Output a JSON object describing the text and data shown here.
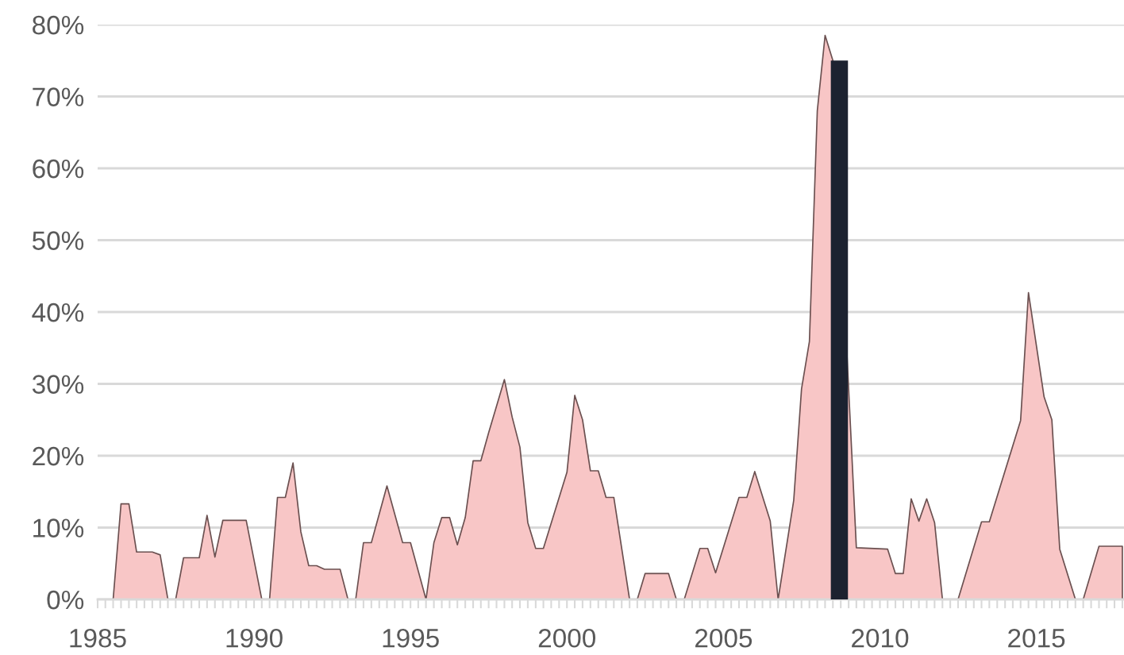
{
  "chart_data": {
    "type": "area",
    "xlim": [
      "1985-01-01",
      "2017-10-20"
    ],
    "xticks": [
      "1985",
      "1990",
      "1995",
      "2000",
      "2005",
      "2010",
      "2015"
    ],
    "ylim": [
      0,
      80
    ],
    "yticks": [
      {
        "value": 0,
        "label": "0%"
      },
      {
        "value": 10,
        "label": "10%"
      },
      {
        "value": 20,
        "label": "20%"
      },
      {
        "value": 30,
        "label": "30%"
      },
      {
        "value": 40,
        "label": "40%"
      },
      {
        "value": 50,
        "label": "50%"
      },
      {
        "value": 60,
        "label": "60%"
      },
      {
        "value": 70,
        "label": "70%"
      },
      {
        "value": 80,
        "label": "80%"
      }
    ],
    "grid": "y",
    "series": [
      {
        "color": "#f8c6c6",
        "x": [
          "1985-07",
          "1985-10",
          "1986-01",
          "1986-04",
          "1986-10",
          "1987-01",
          "1987-04",
          "1987-07",
          "1987-10",
          "1988-04",
          "1988-07",
          "1988-10",
          "1989-01",
          "1989-10",
          "1990-04",
          "1990-07",
          "1990-10",
          "1991-01",
          "1991-04",
          "1991-07",
          "1991-10",
          "1992-01",
          "1992-04",
          "1992-10",
          "1993-01",
          "1993-04",
          "1993-07",
          "1993-10",
          "1994-04",
          "1994-10",
          "1995-01",
          "1995-07",
          "1995-10",
          "1996-01",
          "1996-04",
          "1996-07",
          "1996-10",
          "1997-01",
          "1997-04",
          "1997-07",
          "1998-01",
          "1998-04",
          "1998-07",
          "1998-10",
          "1999-01",
          "1999-04",
          "2000-01",
          "2000-04",
          "2000-07",
          "2000-10",
          "2001-01",
          "2001-04",
          "2001-07",
          "2002-01",
          "2002-04",
          "2002-07",
          "2003-04",
          "2003-07",
          "2003-10",
          "2004-04",
          "2004-07",
          "2004-10",
          "2005-07",
          "2005-10",
          "2006-01",
          "2006-07",
          "2006-10",
          "2007-04",
          "2007-07",
          "2007-10",
          "2008-01",
          "2008-04",
          "2008-07",
          "2009-01",
          "2009-04",
          "2010-04",
          "2010-07",
          "2010-10",
          "2011-01",
          "2011-04",
          "2011-07",
          "2011-10",
          "2012-01",
          "2012-07",
          "2013-04",
          "2013-07",
          "2014-07",
          "2014-10",
          "2015-04",
          "2015-07",
          "2015-10",
          "2016-04",
          "2016-07",
          "2017-01",
          "2017-10"
        ],
        "values": [
          0,
          13.3,
          13.3,
          6.6,
          6.6,
          6.2,
          0,
          0,
          5.8,
          5.8,
          11.7,
          5.9,
          11,
          11,
          0,
          0,
          14.2,
          14.2,
          19,
          9.4,
          4.7,
          4.7,
          4.2,
          4.2,
          0,
          0,
          7.9,
          7.9,
          15.8,
          7.9,
          7.9,
          0,
          7.9,
          11.4,
          11.4,
          7.6,
          11.4,
          19.3,
          19.3,
          23.2,
          30.6,
          25.4,
          21.2,
          10.7,
          7.1,
          7.1,
          17.7,
          28.4,
          25,
          17.9,
          17.9,
          14.2,
          14.2,
          0,
          0,
          3.6,
          3.6,
          0,
          0,
          7.1,
          7.1,
          3.7,
          14.2,
          14.2,
          17.8,
          10.9,
          0,
          13.8,
          29.3,
          35.9,
          68,
          78.5,
          75,
          29.3,
          7.2,
          7,
          3.6,
          3.6,
          14,
          10.9,
          14,
          10.7,
          0,
          0,
          10.8,
          10.8,
          24.9,
          42.7,
          28.2,
          25,
          7,
          0,
          0,
          7.4,
          7.4
        ]
      },
      {
        "type": "bar",
        "color": "#1c2230",
        "x": [
          "2008-09-15"
        ],
        "values": [
          75
        ]
      }
    ]
  }
}
